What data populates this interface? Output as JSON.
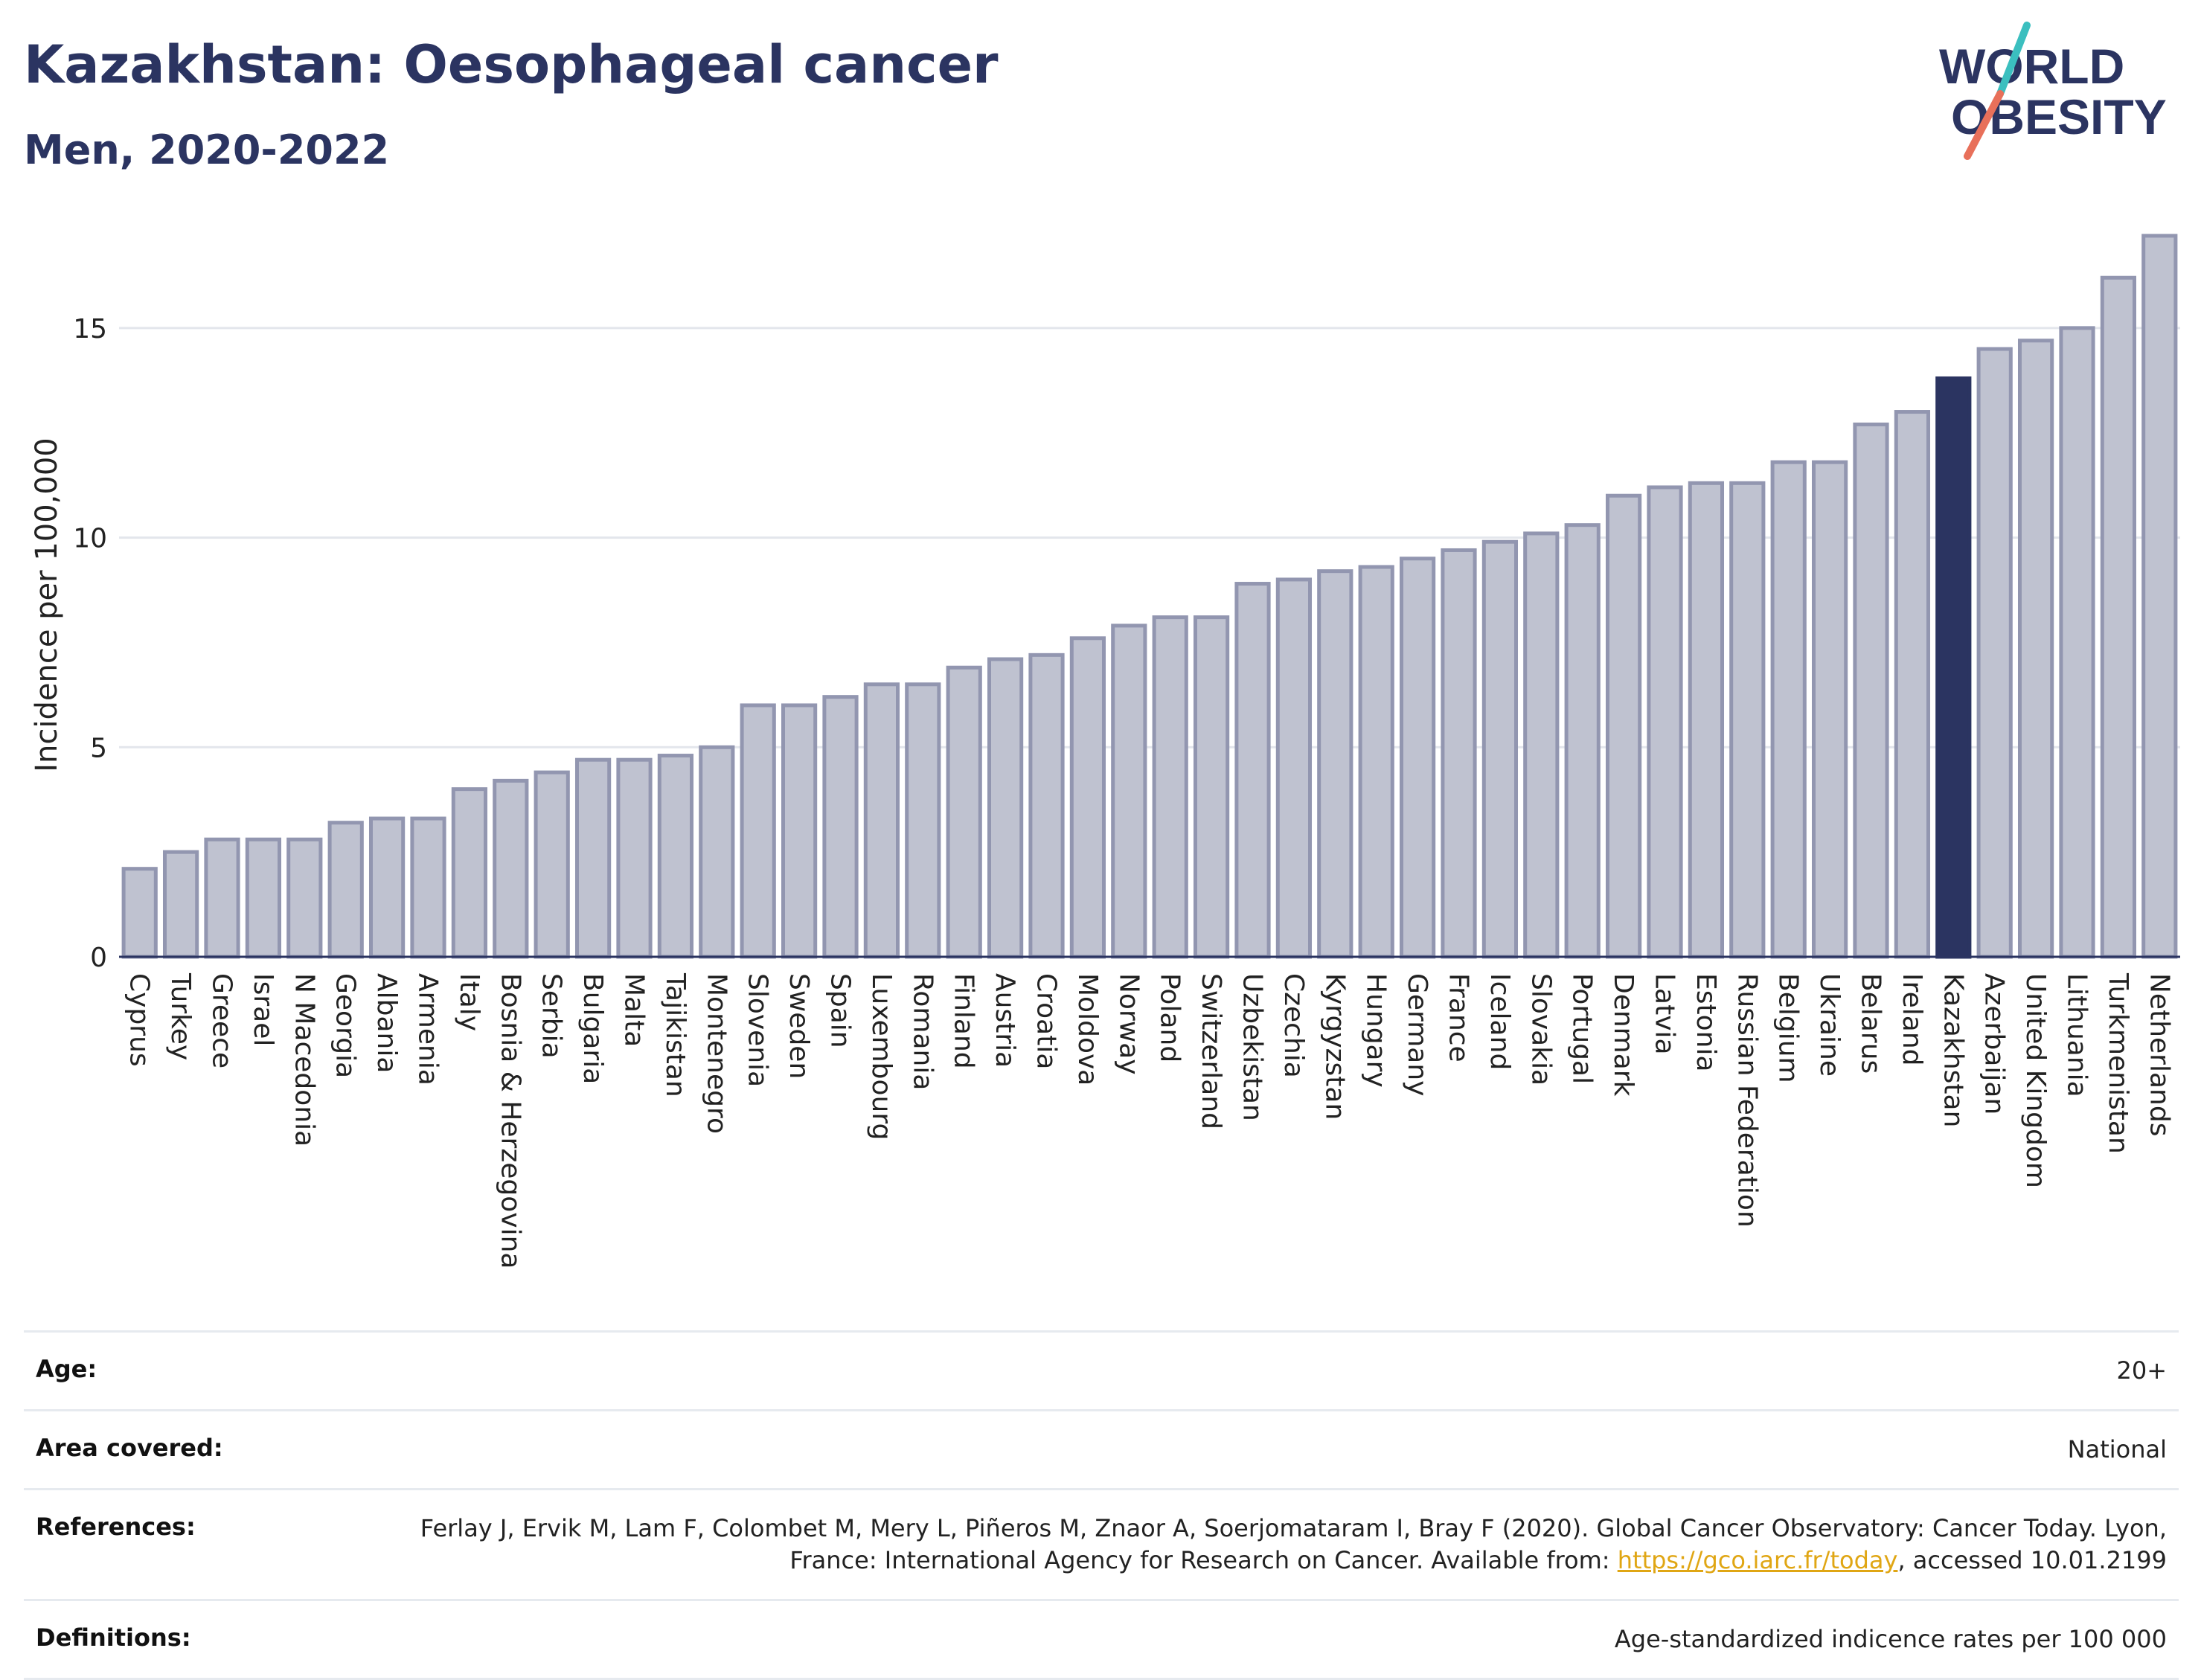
{
  "header": {
    "title": "Kazakhstan: Oesophageal cancer",
    "subtitle": "Men, 2020-2022"
  },
  "logo": {
    "line1": "WORLD",
    "line2": "OBESITY",
    "colors": {
      "text": "#2b3461",
      "slash_teal": "#3bbfbf",
      "slash_coral": "#e8705a"
    }
  },
  "chart_data": {
    "type": "bar",
    "ylabel": "Incidence per 100,000",
    "xlabel": "",
    "ylim": [
      0,
      17.5
    ],
    "yticks": [
      0,
      5,
      10,
      15
    ],
    "grid": true,
    "highlight": "Kazakhstan",
    "colors": {
      "bar": "#bfc2d0",
      "bar_stroke": "#9296b0",
      "highlight": "#2b3461"
    },
    "categories": [
      "Cyprus",
      "Turkey",
      "Greece",
      "Israel",
      "N Macedonia",
      "Georgia",
      "Albania",
      "Armenia",
      "Italy",
      "Bosnia & Herzegovina",
      "Serbia",
      "Bulgaria",
      "Malta",
      "Tajikistan",
      "Montenegro",
      "Slovenia",
      "Sweden",
      "Spain",
      "Luxembourg",
      "Romania",
      "Finland",
      "Austria",
      "Croatia",
      "Moldova",
      "Norway",
      "Poland",
      "Switzerland",
      "Uzbekistan",
      "Czechia",
      "Kyrgyzstan",
      "Hungary",
      "Germany",
      "France",
      "Iceland",
      "Slovakia",
      "Portugal",
      "Denmark",
      "Latvia",
      "Estonia",
      "Russian Federation",
      "Belgium",
      "Ukraine",
      "Belarus",
      "Ireland",
      "Kazakhstan",
      "Azerbaijan",
      "United Kingdom",
      "Lithuania",
      "Turkmenistan",
      "Netherlands"
    ],
    "values": [
      2.1,
      2.5,
      2.8,
      2.8,
      2.8,
      3.2,
      3.3,
      3.3,
      4.0,
      4.2,
      4.4,
      4.7,
      4.7,
      4.8,
      5.0,
      6.0,
      6.0,
      6.2,
      6.5,
      6.5,
      6.9,
      7.1,
      7.2,
      7.6,
      7.9,
      8.1,
      8.1,
      8.9,
      9.0,
      9.2,
      9.3,
      9.5,
      9.7,
      9.9,
      10.1,
      10.3,
      11.0,
      11.2,
      11.3,
      11.3,
      11.8,
      11.8,
      12.7,
      13.0,
      13.8,
      14.5,
      14.7,
      15.0,
      16.2,
      17.2
    ]
  },
  "info": {
    "age": {
      "label": "Age:",
      "value": "20+"
    },
    "area": {
      "label": "Area covered:",
      "value": "National"
    },
    "references": {
      "label": "References:",
      "text_before": "Ferlay J, Ervik M, Lam F, Colombet M, Mery L, Piñeros M, Znaor A, Soerjomataram I, Bray F (2020). Global Cancer Observatory: Cancer Today. Lyon, France: International Agency for Research on Cancer. Available from: ",
      "link": "https://gco.iarc.fr/today",
      "text_after": ", accessed 10.01.2199"
    },
    "definitions": {
      "label": "Definitions:",
      "value": "Age-standardized indicence rates per 100 000"
    }
  }
}
